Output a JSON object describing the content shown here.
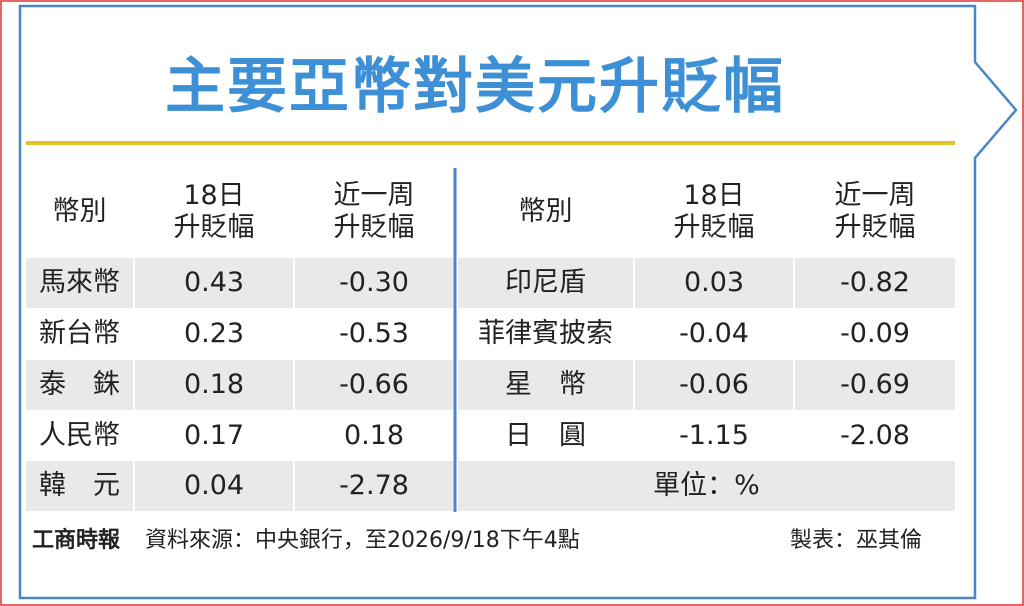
{
  "title": "主要亞幣對美元升貶幅",
  "left_table": {
    "headers": [
      [
        "幣別"
      ],
      [
        "18日",
        "升貶幅"
      ],
      [
        "近一周",
        "升貶幅"
      ]
    ],
    "rows": [
      [
        "馬來幣",
        "0.43",
        "-0.30"
      ],
      [
        "新台幣",
        "0.23",
        "-0.53"
      ],
      [
        "泰　銖",
        "0.18",
        "-0.66"
      ],
      [
        "人民幣",
        "0.17",
        "0.18"
      ],
      [
        "韓　元",
        "0.04",
        "-2.78"
      ]
    ]
  },
  "right_table": {
    "headers": [
      [
        "幣別"
      ],
      [
        "18日",
        "升貶幅"
      ],
      [
        "近一周",
        "升貶幅"
      ]
    ],
    "rows": [
      [
        "印尼盾",
        "0.03",
        "-0.82"
      ],
      [
        "菲律賓披索",
        "-0.04",
        "-0.09"
      ],
      [
        "星　幣",
        "-0.06",
        "-0.69"
      ],
      [
        "日　圓",
        "-1.15",
        "-2.08"
      ]
    ],
    "unit": "單位：%"
  },
  "footer": {
    "logo": "工商時報",
    "source": "資料來源：中央銀行，至2026/9/18下午4點",
    "credit": "製表：巫其倫"
  }
}
